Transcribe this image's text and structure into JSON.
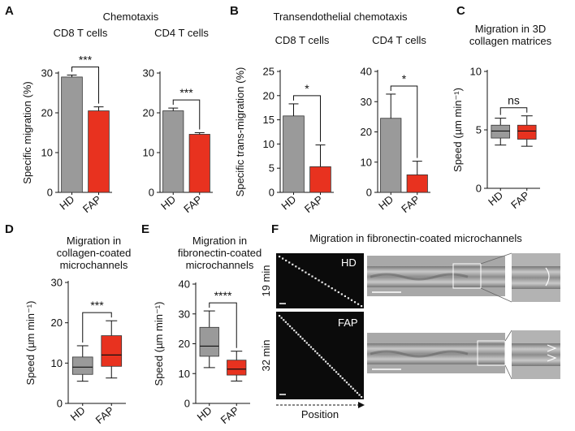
{
  "colors": {
    "hd": "#9a9a9a",
    "fap": "#e8321f",
    "axis": "#111111"
  },
  "panel_labels": {
    "A": "A",
    "B": "B",
    "C": "C",
    "D": "D",
    "E": "E",
    "F": "F"
  },
  "group_titles": {
    "A": "Chemotaxis",
    "B": "Transendothelial chemotaxis"
  },
  "chart_data": [
    {
      "id": "A1",
      "type": "bar",
      "panel": "A",
      "title": "CD8 T cells",
      "ylabel": "Specific migration (%)",
      "categories": [
        "HD",
        "FAP"
      ],
      "values": [
        29,
        20.5
      ],
      "errors": [
        0.5,
        1.0
      ],
      "ylim": [
        0,
        30
      ],
      "yticks": [
        0,
        10,
        20,
        30
      ],
      "significance": "***",
      "grid": false
    },
    {
      "id": "A2",
      "type": "bar",
      "panel": "A",
      "title": "CD4 T cells",
      "ylabel": "",
      "categories": [
        "HD",
        "FAP"
      ],
      "values": [
        20.5,
        14.6
      ],
      "errors": [
        0.7,
        0.4
      ],
      "ylim": [
        0,
        30
      ],
      "yticks": [
        0,
        10,
        20,
        30
      ],
      "significance": "***",
      "grid": false
    },
    {
      "id": "B1",
      "type": "bar",
      "panel": "B",
      "title": "CD8 T cells",
      "ylabel": "Specific trans-migration (%)",
      "categories": [
        "HD",
        "FAP"
      ],
      "values": [
        15.8,
        5.3
      ],
      "errors": [
        2.5,
        4.5
      ],
      "ylim": [
        0,
        25
      ],
      "yticks": [
        0,
        5,
        10,
        15,
        20,
        25
      ],
      "significance": "*",
      "grid": false
    },
    {
      "id": "B2",
      "type": "bar",
      "panel": "B",
      "title": "CD4 T cells",
      "ylabel": "",
      "categories": [
        "HD",
        "FAP"
      ],
      "values": [
        24.5,
        5.8
      ],
      "errors": [
        8.0,
        4.5
      ],
      "ylim": [
        0,
        40
      ],
      "yticks": [
        0,
        10,
        20,
        30,
        40
      ],
      "significance": "*",
      "grid": false
    },
    {
      "id": "C",
      "type": "box",
      "panel": "C",
      "title": "Migration in 3D collagen matrices",
      "title_lines": [
        "Migration in 3D",
        "collagen matrices"
      ],
      "ylabel": "Speed (µm min⁻¹)",
      "categories": [
        "HD",
        "FAP"
      ],
      "boxes": [
        {
          "whisker_low": 3.7,
          "q1": 4.3,
          "median": 4.9,
          "q3": 5.4,
          "whisker_high": 6.0
        },
        {
          "whisker_low": 3.6,
          "q1": 4.2,
          "median": 4.9,
          "q3": 5.4,
          "whisker_high": 6.2
        }
      ],
      "ylim": [
        0,
        10
      ],
      "yticks": [
        0,
        5,
        10
      ],
      "significance": "ns",
      "grid": false
    },
    {
      "id": "D",
      "type": "box",
      "panel": "D",
      "title": "Migration in collagen-coated microchannels",
      "title_lines": [
        "Migration in",
        "collagen-coated",
        "microchannels"
      ],
      "ylabel": "Speed (µm min⁻¹)",
      "categories": [
        "HD",
        "FAP"
      ],
      "boxes": [
        {
          "whisker_low": 5.5,
          "q1": 7.2,
          "median": 9.0,
          "q3": 11.5,
          "whisker_high": 14.3
        },
        {
          "whisker_low": 6.3,
          "q1": 9.2,
          "median": 12.0,
          "q3": 16.8,
          "whisker_high": 20.5
        }
      ],
      "ylim": [
        0,
        30
      ],
      "yticks": [
        0,
        10,
        20,
        30
      ],
      "significance": "***",
      "grid": false
    },
    {
      "id": "E",
      "type": "box",
      "panel": "E",
      "title": "Migration in fibronectin-coated microchannels",
      "title_lines": [
        "Migration in",
        "fibronectin-coated",
        "microchannels"
      ],
      "ylabel": "Speed (µm min⁻¹)",
      "categories": [
        "HD",
        "FAP"
      ],
      "boxes": [
        {
          "whisker_low": 12.0,
          "q1": 15.8,
          "median": 19.2,
          "q3": 25.5,
          "whisker_high": 31.0
        },
        {
          "whisker_low": 7.5,
          "q1": 9.5,
          "median": 11.5,
          "q3": 14.5,
          "whisker_high": 17.5
        }
      ],
      "ylim": [
        0,
        40
      ],
      "yticks": [
        0,
        10,
        20,
        30,
        40
      ],
      "significance": "****",
      "grid": false
    }
  ],
  "panelF": {
    "title": "Migration in fibronectin-coated microchannels",
    "kymographs": [
      {
        "label": "HD",
        "time": "19 min"
      },
      {
        "label": "FAP",
        "time": "32 min"
      }
    ],
    "xlabel": "Position"
  }
}
